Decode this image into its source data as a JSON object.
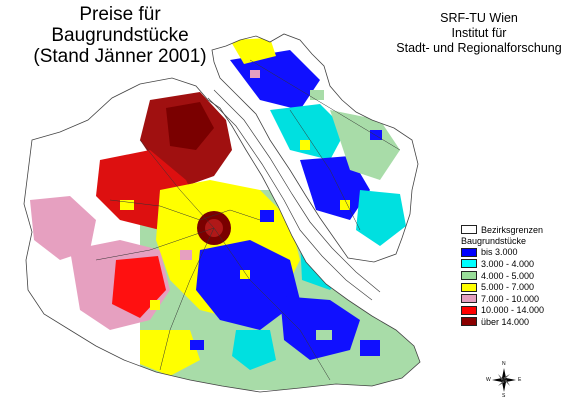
{
  "title": {
    "lines": [
      "Preise für",
      "Baugrundstücke",
      "(Stand Jänner 2001)"
    ]
  },
  "institution": {
    "lines": [
      "SRF-TU Wien",
      "Institut für",
      "Stadt- und Regionalforschung"
    ]
  },
  "legend": {
    "boundary_label": "Bezirksgrenzen",
    "heading": "Baugrundstücke",
    "classes": [
      {
        "label": "bis 3.000",
        "color": "#0000ff"
      },
      {
        "label": "3.000 - 4.000",
        "color": "#00ffff"
      },
      {
        "label": "4.000 - 5.000",
        "color": "#99dd99"
      },
      {
        "label": "5.000 - 7.000",
        "color": "#ffff00"
      },
      {
        "label": "7.000 - 10.000",
        "color": "#e6a0c0"
      },
      {
        "label": "10.000 - 14.000",
        "color": "#ff0000"
      },
      {
        "label": "über 14.000",
        "color": "#8b0000"
      }
    ]
  },
  "compass": {
    "north": "N",
    "south": "S",
    "east": "E",
    "west": "W"
  }
}
